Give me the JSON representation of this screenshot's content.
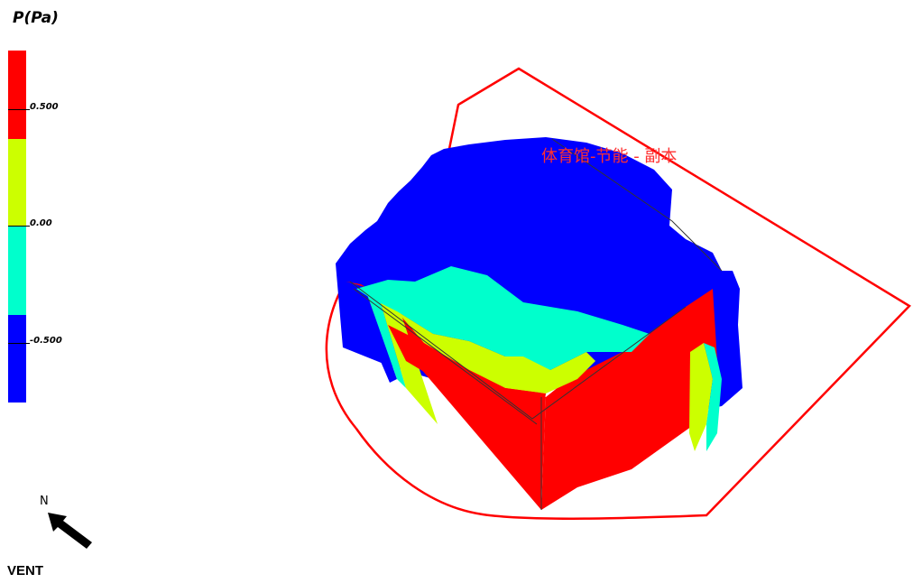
{
  "legend": {
    "title": "P(Pa)",
    "ticks": [
      {
        "value": "0.500"
      },
      {
        "value": "0.00"
      },
      {
        "value": "-0.500"
      }
    ],
    "colors": [
      "#ff0000",
      "#ccff00",
      "#00ffcc",
      "#0000ff"
    ]
  },
  "compass": {
    "north_label": "N",
    "icon": "north-arrow-icon"
  },
  "model": {
    "title": "体育馆-节能 - 副本",
    "surface_colors": {
      "high": "#ff0000",
      "mid_high": "#ccff00",
      "mid_low": "#00ffcc",
      "low": "#0000ff"
    },
    "boundary_color": "#ff0000"
  },
  "footer": {
    "label": "VENT"
  }
}
